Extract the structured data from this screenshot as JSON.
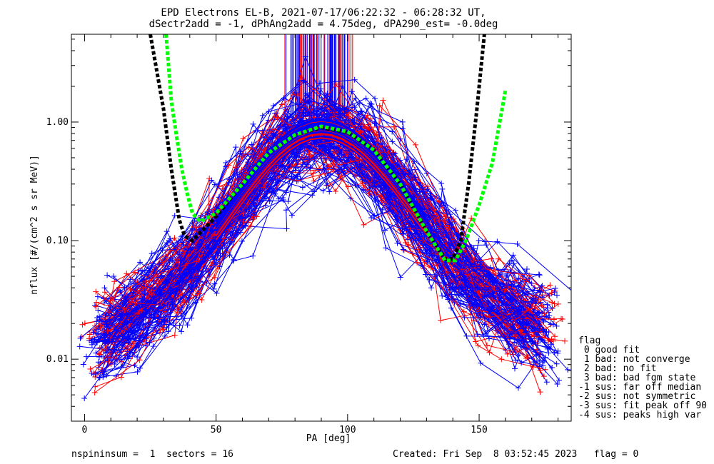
{
  "chart_data": {
    "type": "line",
    "title": [
      "EPD Electrons EL-B, 2021-07-17/06:22:32 - 06:28:32 UT,",
      "dSectr2add = -1, dPhAng2add = 4.75deg, dPA290_est=  -0.0deg"
    ],
    "xlabel": "PA [deg]",
    "ylabel": "nflux [#/(cm^2 s sr MeV)]",
    "xlim": [
      -5,
      185
    ],
    "ylim": [
      0.003,
      5.5
    ],
    "yscale": "log",
    "xticks": [
      0,
      50,
      100,
      150
    ],
    "yticks": [
      {
        "value": 0.01,
        "label": "0.01"
      },
      {
        "value": 0.1,
        "label": "0.10"
      },
      {
        "value": 1,
        "label": "1.00"
      }
    ],
    "series": [
      {
        "color": "#ff0000",
        "style": "lines+markers",
        "n_traces": 50,
        "peak_value": 0.88,
        "peak_pa": 90,
        "edge_value_low": 0.012,
        "edge_value_high": 0.015
      },
      {
        "color": "#0000ff",
        "style": "lines+markers",
        "n_traces": 110,
        "peak_value": 0.88,
        "peak_pa": 90,
        "edge_value_low": 0.012,
        "edge_value_high": 0.015
      },
      {
        "color": "#000000",
        "style": "dashed",
        "points": [
          [
            25,
            5.5
          ],
          [
            30,
            1.3
          ],
          [
            33,
            0.4
          ],
          [
            36,
            0.15
          ],
          [
            38,
            0.11
          ],
          [
            41,
            0.1
          ],
          [
            50,
            0.16
          ],
          [
            60,
            0.3
          ],
          [
            70,
            0.55
          ],
          [
            80,
            0.78
          ],
          [
            90,
            0.9
          ],
          [
            100,
            0.82
          ],
          [
            110,
            0.58
          ],
          [
            120,
            0.3
          ],
          [
            130,
            0.12
          ],
          [
            137,
            0.07
          ],
          [
            140,
            0.07
          ],
          [
            143,
            0.1
          ],
          [
            146,
            0.3
          ],
          [
            149,
            1.2
          ],
          [
            152,
            5.5
          ]
        ]
      },
      {
        "color": "#00ff00",
        "style": "dashed",
        "points": [
          [
            31,
            5.5
          ],
          [
            33,
            1.5
          ],
          [
            35,
            0.75
          ],
          [
            37,
            0.4
          ],
          [
            39,
            0.25
          ],
          [
            41,
            0.17
          ],
          [
            44,
            0.145
          ],
          [
            50,
            0.17
          ],
          [
            60,
            0.3
          ],
          [
            70,
            0.55
          ],
          [
            80,
            0.78
          ],
          [
            90,
            0.92
          ],
          [
            100,
            0.83
          ],
          [
            110,
            0.58
          ],
          [
            120,
            0.3
          ],
          [
            130,
            0.12
          ],
          [
            137,
            0.068
          ],
          [
            141,
            0.068
          ],
          [
            145,
            0.1
          ],
          [
            150,
            0.2
          ],
          [
            155,
            0.45
          ],
          [
            160,
            1.85
          ]
        ]
      }
    ],
    "spike_band": {
      "pa_range": [
        76,
        102
      ],
      "from_value": 1.1
    }
  },
  "legend": {
    "title": "flag",
    "items": [
      " 0 good fit",
      " 1 bad: not converge",
      " 2 bad: no fit",
      " 3 bad: bad fgm state",
      "-1 sus: far off median",
      "-2 sus: not symmetric",
      "-3 sus: fit peak off 90",
      "-4 sus: peaks high var"
    ]
  },
  "footer": {
    "left": "nspininsum =  1  sectors = 16",
    "right": "Created: Fri Sep  8 03:52:45 2023   flag = 0"
  },
  "colors": {
    "red": "#ff0000",
    "blue": "#0000ff",
    "black_fit": "#000000",
    "green_fit": "#00ff00"
  }
}
